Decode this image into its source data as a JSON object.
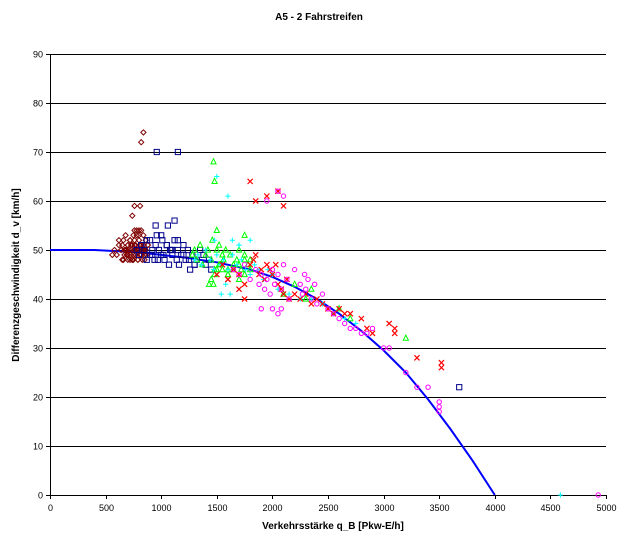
{
  "chart_data": {
    "type": "scatter",
    "title": "A5 - 2 Fahrstreifen",
    "xlabel": "Verkehrsstärke q_B [Pkw-E/h]",
    "ylabel": "Differenzgeschwindigkeit d_v [km/h]",
    "xlim": [
      0,
      5000
    ],
    "ylim": [
      0,
      90
    ],
    "x_ticks": [
      0,
      500,
      1000,
      1500,
      2000,
      2500,
      3000,
      3500,
      4000,
      4500,
      5000
    ],
    "y_ticks": [
      0,
      10,
      20,
      30,
      40,
      50,
      60,
      70,
      80,
      90
    ],
    "x_tick_labels": [
      "0",
      "500",
      "1000",
      "1500",
      "2000",
      "2500",
      "3000",
      "3500",
      "4000",
      "4500",
      "5000"
    ],
    "y_tick_labels": [
      "0",
      "10",
      "20",
      "30",
      "40",
      "50",
      "60",
      "70",
      "80",
      "90"
    ],
    "grid": "horizontal",
    "legend": "none",
    "fit_curve": {
      "color": "#0000ff",
      "x": [
        0,
        400,
        800,
        1200,
        1500,
        1800,
        2000,
        2200,
        2400,
        2600,
        2800,
        3000,
        3200,
        3400,
        3600,
        3800,
        4000
      ],
      "y": [
        50,
        50,
        49.5,
        48.5,
        47.5,
        46,
        44.5,
        42.5,
        40,
        37,
        33.5,
        29.5,
        25,
        19.5,
        13.5,
        7,
        0
      ]
    },
    "series": [
      {
        "marker": "diamond",
        "color": "#800000",
        "x": [
          560,
          580,
          600,
          620,
          640,
          650,
          660,
          670,
          680,
          690,
          700,
          700,
          710,
          720,
          720,
          730,
          740,
          740,
          750,
          750,
          760,
          760,
          770,
          770,
          780,
          780,
          790,
          800,
          800,
          810,
          820,
          830,
          840,
          850,
          860,
          870,
          880,
          620,
          650,
          680,
          700,
          720,
          740,
          760,
          780,
          800,
          820,
          840,
          860,
          760,
          780,
          800,
          820,
          840,
          660,
          690,
          720,
          750,
          770,
          790,
          810,
          830,
          850,
          640,
          670,
          700,
          730,
          760,
          790,
          820,
          850,
          880,
          740,
          760,
          810,
          820,
          840
        ],
        "y": [
          49,
          50,
          49,
          51,
          50,
          48,
          52,
          49,
          53,
          50,
          51,
          48,
          50,
          49,
          52,
          50,
          51,
          48,
          53,
          49,
          50,
          52,
          51,
          49,
          50,
          53,
          48,
          50,
          52,
          51,
          49,
          50,
          51,
          48,
          50,
          49,
          51,
          52,
          51,
          50,
          49,
          52,
          48,
          51,
          50,
          53,
          49,
          50,
          52,
          54,
          54,
          54,
          54,
          53,
          48,
          49,
          48,
          48,
          49,
          48,
          49,
          48,
          49,
          50,
          50,
          51,
          51,
          50,
          50,
          51,
          50,
          51,
          57,
          59,
          59,
          72,
          74
        ]
      },
      {
        "marker": "square",
        "color": "#00008b",
        "x": [
          780,
          800,
          820,
          850,
          870,
          900,
          920,
          940,
          950,
          960,
          980,
          1000,
          1010,
          1030,
          1050,
          1070,
          1090,
          1100,
          1120,
          1140,
          1150,
          1160,
          1180,
          1200,
          1220,
          1240,
          1260,
          1280,
          1300,
          1320,
          1350,
          1380,
          1400,
          1430,
          1450,
          900,
          950,
          1000,
          1050,
          1100,
          1150,
          1200,
          1250,
          1300,
          870,
          920,
          970,
          1020,
          1080,
          960,
          1060,
          1150,
          1120,
          3680
        ],
        "y": [
          50,
          49,
          51,
          50,
          52,
          49,
          50,
          48,
          51,
          53,
          50,
          49,
          52,
          48,
          51,
          47,
          50,
          49,
          52,
          48,
          50,
          47,
          49,
          51,
          48,
          50,
          46,
          49,
          47,
          48,
          50,
          49,
          47,
          48,
          46,
          52,
          55,
          53,
          51,
          50,
          52,
          49,
          48,
          47,
          48,
          49,
          48,
          49,
          50,
          70,
          55,
          70,
          56,
          22
        ]
      },
      {
        "marker": "triangle",
        "color": "#00ff00",
        "x": [
          1280,
          1300,
          1320,
          1350,
          1370,
          1400,
          1420,
          1450,
          1460,
          1480,
          1500,
          1520,
          1550,
          1560,
          1580,
          1600,
          1620,
          1650,
          1680,
          1700,
          1720,
          1750,
          1780,
          1800,
          1450,
          1480,
          1500,
          1530,
          1560,
          1600,
          1650,
          1700,
          1750,
          1470,
          1480,
          1500,
          1520,
          1430,
          1470,
          1550,
          1600,
          1700,
          1750,
          1800,
          2100,
          2200,
          2300,
          2350,
          2600,
          2700,
          3200,
          1750
        ],
        "y": [
          49,
          50,
          48,
          51,
          47,
          49,
          50,
          48,
          52,
          46,
          50,
          47,
          49,
          48,
          50,
          46,
          49,
          47,
          48,
          50,
          46,
          49,
          47,
          48,
          44,
          45,
          46,
          47,
          48,
          45,
          46,
          44,
          45,
          68,
          64,
          54,
          51,
          43,
          43,
          46,
          45,
          47,
          48,
          46,
          41,
          43,
          40,
          42,
          38,
          36,
          32,
          53
        ]
      },
      {
        "marker": "cross",
        "color": "#00ffff",
        "x": [
          1300,
          1330,
          1360,
          1400,
          1440,
          1470,
          1500,
          1530,
          1560,
          1600,
          1640,
          1680,
          1720,
          1760,
          1800,
          1840,
          1880,
          1920,
          1960,
          2000,
          1500,
          1600,
          1700,
          1800,
          1640,
          1700,
          1480,
          1540,
          1580,
          1620,
          2050,
          2150,
          2250,
          2350,
          2450,
          2550,
          2650,
          2750,
          4590
        ],
        "y": [
          48,
          49,
          47,
          50,
          48,
          46,
          49,
          47,
          48,
          46,
          49,
          47,
          48,
          46,
          45,
          47,
          46,
          44,
          46,
          45,
          65,
          61,
          51,
          52,
          52,
          51,
          52,
          41,
          43,
          41,
          42,
          41,
          40,
          40,
          39,
          37,
          36,
          35,
          0
        ]
      },
      {
        "marker": "x",
        "color": "#ff0000",
        "x": [
          1500,
          1550,
          1600,
          1650,
          1700,
          1750,
          1800,
          1830,
          1850,
          1880,
          1900,
          1930,
          1950,
          1980,
          2000,
          2030,
          2050,
          2080,
          2100,
          2130,
          2150,
          2200,
          2250,
          2300,
          2350,
          2400,
          2450,
          2500,
          2550,
          2600,
          2650,
          2700,
          2800,
          2850,
          2900,
          3050,
          3100,
          3100,
          3300,
          3520,
          3520,
          1800,
          1850,
          1950,
          2050,
          2100,
          1600,
          1700,
          1750
        ],
        "y": [
          45,
          47,
          44,
          46,
          45,
          43,
          47,
          48,
          49,
          45,
          46,
          44,
          47,
          46,
          45,
          47,
          43,
          42,
          41,
          44,
          40,
          41,
          40,
          41,
          39,
          40,
          39,
          38,
          37,
          38,
          37,
          37,
          36,
          34,
          33,
          35,
          34,
          33,
          28,
          27,
          26,
          64,
          60,
          61,
          62,
          59,
          44,
          42,
          40
        ]
      },
      {
        "marker": "circle",
        "color": "#ff00ff",
        "x": [
          1650,
          1700,
          1750,
          1800,
          1850,
          1880,
          1900,
          1930,
          1950,
          1980,
          2000,
          2020,
          2050,
          2080,
          2100,
          2130,
          2150,
          2200,
          2250,
          2270,
          2290,
          2300,
          2320,
          2350,
          2380,
          2400,
          2450,
          2500,
          2550,
          2600,
          2650,
          2700,
          2750,
          2800,
          2850,
          2900,
          3000,
          3050,
          3200,
          3300,
          3400,
          3500,
          3500,
          3500,
          2050,
          2100,
          1950,
          4930,
          2000,
          2050,
          2080,
          1900
        ],
        "y": [
          46,
          45,
          47,
          44,
          46,
          43,
          45,
          42,
          44,
          41,
          46,
          43,
          45,
          42,
          47,
          44,
          40,
          46,
          43,
          41,
          45,
          42,
          44,
          40,
          43,
          39,
          41,
          38,
          37,
          36,
          35,
          34,
          34,
          33,
          33,
          34,
          30,
          30,
          25,
          22,
          22,
          17,
          18,
          19,
          62,
          61,
          60,
          0,
          38,
          37,
          38,
          38
        ]
      }
    ]
  }
}
